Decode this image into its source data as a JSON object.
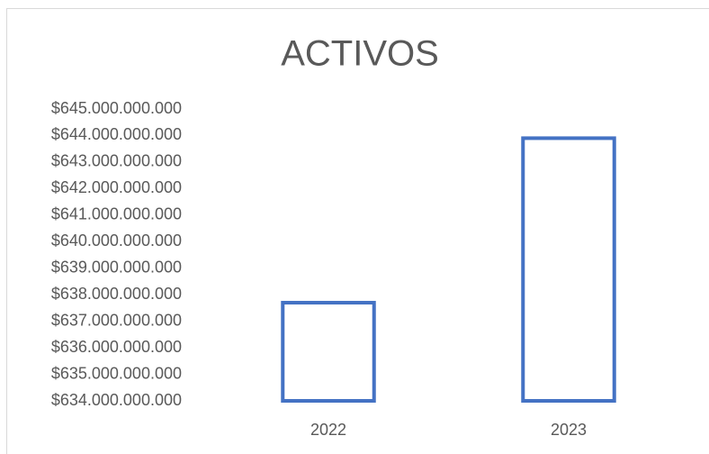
{
  "chart_data": {
    "type": "bar",
    "title": "ACTIVOS",
    "categories": [
      "2022",
      "2023"
    ],
    "values": [
      637700000000,
      643900000000
    ],
    "color": "#4472c4",
    "fill": "none",
    "ylim": [
      634000000000,
      645000000000
    ],
    "yticks": [
      {
        "value": 634000000000,
        "label": "$634.000.000.000"
      },
      {
        "value": 635000000000,
        "label": "$635.000.000.000"
      },
      {
        "value": 636000000000,
        "label": "$636.000.000.000"
      },
      {
        "value": 637000000000,
        "label": "$637.000.000.000"
      },
      {
        "value": 638000000000,
        "label": "$638.000.000.000"
      },
      {
        "value": 639000000000,
        "label": "$639.000.000.000"
      },
      {
        "value": 640000000000,
        "label": "$640.000.000.000"
      },
      {
        "value": 641000000000,
        "label": "$641.000.000.000"
      },
      {
        "value": 642000000000,
        "label": "$642.000.000.000"
      },
      {
        "value": 643000000000,
        "label": "$643.000.000.000"
      },
      {
        "value": 644000000000,
        "label": "$644.000.000.000"
      },
      {
        "value": 645000000000,
        "label": "$645.000.000.000"
      }
    ],
    "grid": false
  }
}
